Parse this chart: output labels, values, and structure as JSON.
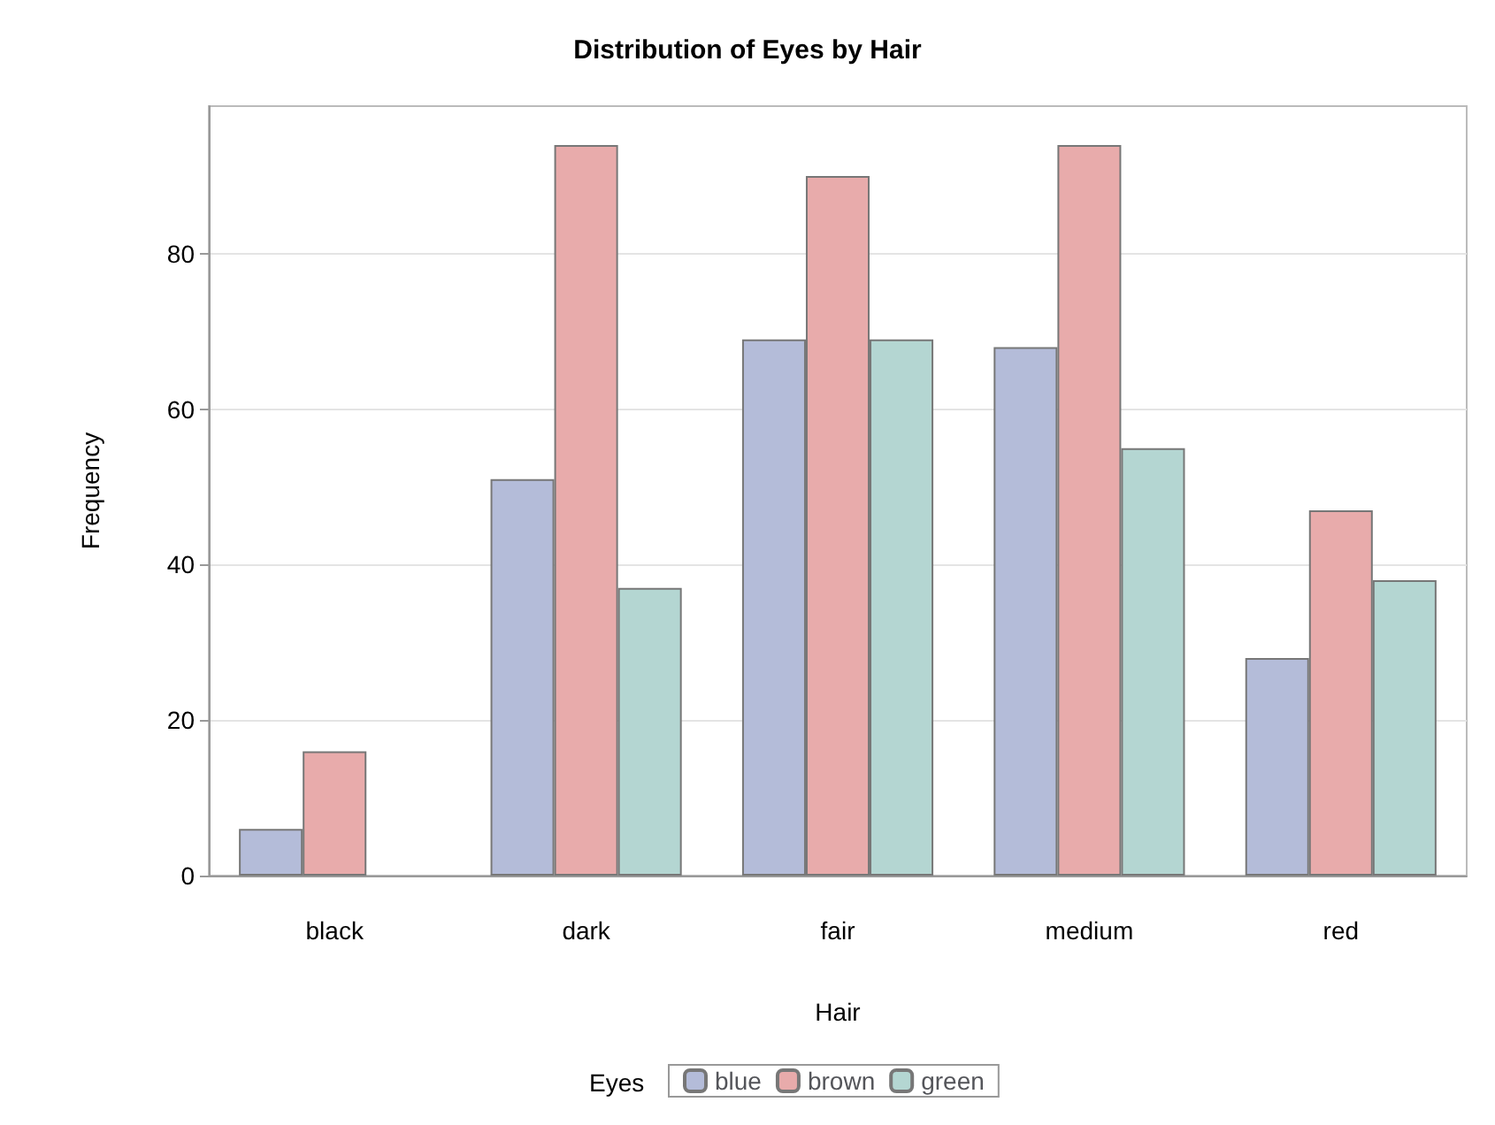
{
  "chart_data": {
    "type": "bar",
    "title": "Distribution of Eyes by Hair",
    "xlabel": "Hair",
    "ylabel": "Frequency",
    "legend_title": "Eyes",
    "categories": [
      "black",
      "dark",
      "fair",
      "medium",
      "red"
    ],
    "series": [
      {
        "name": "blue",
        "color": "#b4bcd9",
        "values": [
          6,
          51,
          69,
          68,
          28
        ]
      },
      {
        "name": "brown",
        "color": "#e8abab",
        "values": [
          16,
          94,
          90,
          94,
          47
        ]
      },
      {
        "name": "green",
        "color": "#b4d6d2",
        "values": [
          null,
          37,
          69,
          55,
          38
        ]
      }
    ],
    "ylim": [
      0,
      99
    ],
    "yticks": [
      0,
      20,
      40,
      60,
      80
    ],
    "grid": "y",
    "legend": "bottom"
  }
}
